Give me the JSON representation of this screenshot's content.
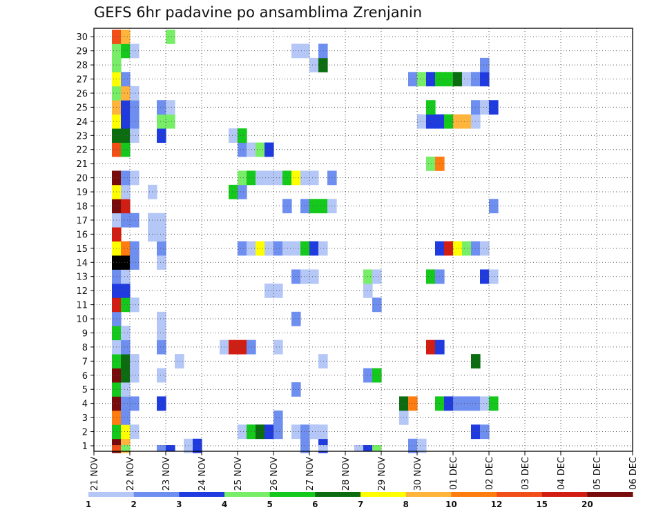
{
  "chart_data": {
    "type": "heatmap",
    "title": "GEFS 6hr padavine po ansamblima Zrenjanin",
    "xlabel": "",
    "ylabel": "",
    "x_tick_labels": [
      "21 NOV",
      "22 NOV",
      "23 NOV",
      "24 NOV",
      "25 NOV",
      "26 NOV",
      "27 NOV",
      "28 NOV",
      "29 NOV",
      "30 NOV",
      "01 DEC",
      "02 DEC",
      "03 DEC",
      "04 DEC",
      "05 DEC",
      "06 DEC"
    ],
    "y_tick_labels": [
      "1",
      "2",
      "3",
      "4",
      "5",
      "6",
      "7",
      "8",
      "9",
      "10",
      "11",
      "12",
      "13",
      "14",
      "15",
      "16",
      "17",
      "18",
      "19",
      "20",
      "21",
      "22",
      "23",
      "24",
      "25",
      "26",
      "27",
      "28",
      "29",
      "30"
    ],
    "ylim": [
      0,
      30
    ],
    "x_step_hours": 6,
    "grid": true,
    "colorbar": {
      "labels": [
        "1",
        "2",
        "3",
        "4",
        "5",
        "6",
        "7",
        "8",
        "10",
        "12",
        "15",
        "20"
      ],
      "colors": [
        "#b4c7f6",
        "#6e8ef0",
        "#1f3be0",
        "#78ed67",
        "#14c81c",
        "#0b6d10",
        "#ffff00",
        "#ffb43c",
        "#ff7d10",
        "#f24e18",
        "#d11d12",
        "#780b0b"
      ],
      "position": "bottom"
    },
    "rows": [
      [
        [
          2,
          1,
          12
        ],
        [
          3,
          1,
          8
        ],
        [
          10,
          1,
          1
        ],
        [
          11,
          1,
          3
        ],
        [
          23,
          1,
          2
        ],
        [
          25,
          1,
          3
        ],
        [
          35,
          1,
          2
        ],
        [
          36,
          1,
          1
        ]
      ],
      [
        [
          2,
          1,
          5
        ],
        [
          3,
          1,
          7
        ],
        [
          4,
          1,
          1
        ],
        [
          16,
          3,
          1
        ],
        [
          17,
          1,
          5
        ],
        [
          18,
          1,
          6
        ],
        [
          19,
          1,
          3
        ],
        [
          20,
          1,
          2
        ],
        [
          22,
          1,
          1
        ],
        [
          23,
          2,
          2
        ],
        [
          24,
          2,
          1
        ],
        [
          42,
          1,
          3
        ],
        [
          43,
          1,
          2
        ]
      ],
      [
        [
          2,
          1,
          9
        ],
        [
          3,
          1,
          2
        ],
        [
          20,
          1,
          2
        ],
        [
          34,
          1,
          1
        ]
      ],
      [
        [
          2,
          1,
          12
        ],
        [
          3,
          2,
          2
        ],
        [
          7,
          1,
          3
        ],
        [
          34,
          1,
          6
        ],
        [
          35,
          1,
          9
        ],
        [
          38,
          1,
          5
        ],
        [
          39,
          1,
          3
        ],
        [
          40,
          3,
          2
        ],
        [
          43,
          1,
          1
        ],
        [
          44,
          1,
          5
        ]
      ],
      [
        [
          2,
          2,
          5
        ],
        [
          3,
          1,
          1
        ],
        [
          22,
          1,
          2
        ]
      ],
      [
        [
          2,
          1,
          12
        ],
        [
          3,
          1,
          6
        ],
        [
          4,
          1,
          1
        ],
        [
          7,
          1,
          1
        ],
        [
          30,
          1,
          2
        ],
        [
          31,
          1,
          5
        ]
      ],
      [
        [
          2,
          1,
          5
        ],
        [
          3,
          1,
          6
        ],
        [
          4,
          1,
          1
        ],
        [
          9,
          1,
          1
        ],
        [
          25,
          1,
          1
        ],
        [
          42,
          1,
          6
        ]
      ],
      [
        [
          2,
          1,
          1
        ],
        [
          3,
          1,
          2
        ],
        [
          7,
          1,
          2
        ],
        [
          14,
          1,
          1
        ],
        [
          15,
          2,
          11
        ],
        [
          17,
          1,
          2
        ],
        [
          20,
          1,
          1
        ],
        [
          37,
          1,
          11
        ],
        [
          38,
          1,
          3
        ]
      ],
      [
        [
          2,
          1,
          5
        ],
        [
          3,
          1,
          1
        ],
        [
          7,
          1,
          1
        ]
      ],
      [
        [
          2,
          1,
          2
        ],
        [
          7,
          1,
          1
        ],
        [
          22,
          1,
          2
        ]
      ],
      [
        [
          2,
          1,
          11
        ],
        [
          3,
          1,
          5
        ],
        [
          4,
          1,
          1
        ],
        [
          4,
          1,
          1
        ],
        [
          31,
          1,
          2
        ]
      ],
      [
        [
          2,
          2,
          3
        ],
        [
          19,
          2,
          1
        ],
        [
          30,
          1,
          1
        ]
      ],
      [
        [
          2,
          1,
          2
        ],
        [
          3,
          1,
          1
        ],
        [
          22,
          1,
          2
        ],
        [
          23,
          1,
          1
        ],
        [
          23,
          2,
          1
        ],
        [
          30,
          1,
          4
        ],
        [
          31,
          1,
          1
        ],
        [
          37,
          1,
          5
        ],
        [
          38,
          1,
          2
        ],
        [
          43,
          1,
          3
        ],
        [
          44,
          1,
          1
        ]
      ],
      [
        [
          2,
          2,
          13
        ],
        [
          4,
          1,
          2
        ],
        [
          7,
          1,
          1
        ]
      ],
      [
        [
          2,
          1,
          7
        ],
        [
          3,
          1,
          9
        ],
        [
          4,
          1,
          2
        ],
        [
          7,
          1,
          2
        ],
        [
          16,
          1,
          2
        ],
        [
          17,
          1,
          1
        ],
        [
          18,
          1,
          7
        ],
        [
          19,
          1,
          1
        ],
        [
          20,
          1,
          2
        ],
        [
          21,
          2,
          1
        ],
        [
          23,
          1,
          5
        ],
        [
          24,
          1,
          3
        ],
        [
          25,
          1,
          1
        ],
        [
          38,
          1,
          3
        ],
        [
          39,
          1,
          11
        ],
        [
          40,
          1,
          7
        ],
        [
          41,
          1,
          4
        ],
        [
          42,
          1,
          2
        ],
        [
          43,
          1,
          1
        ]
      ],
      [
        [
          2,
          1,
          11
        ],
        [
          6,
          2,
          1
        ]
      ],
      [
        [
          2,
          1,
          1
        ],
        [
          3,
          2,
          2
        ],
        [
          6,
          2,
          1
        ]
      ],
      [
        [
          2,
          1,
          12
        ],
        [
          3,
          1,
          11
        ],
        [
          21,
          1,
          2
        ],
        [
          23,
          1,
          2
        ],
        [
          24,
          2,
          5
        ],
        [
          26,
          1,
          1
        ],
        [
          44,
          1,
          2
        ]
      ],
      [
        [
          2,
          1,
          7
        ],
        [
          3,
          1,
          1
        ],
        [
          6,
          1,
          1
        ],
        [
          15,
          1,
          5
        ],
        [
          16,
          1,
          2
        ]
      ],
      [
        [
          2,
          1,
          12
        ],
        [
          3,
          1,
          2
        ],
        [
          4,
          1,
          1
        ],
        [
          16,
          1,
          4
        ],
        [
          17,
          1,
          5
        ],
        [
          18,
          1,
          1
        ],
        [
          19,
          2,
          1
        ],
        [
          21,
          1,
          5
        ],
        [
          22,
          1,
          7
        ],
        [
          23,
          2,
          1
        ],
        [
          26,
          1,
          2
        ]
      ],
      [
        [
          37,
          1,
          4
        ],
        [
          38,
          1,
          9
        ]
      ],
      [
        [
          2,
          1,
          10
        ],
        [
          3,
          1,
          5
        ],
        [
          16,
          1,
          2
        ],
        [
          17,
          1,
          1
        ],
        [
          18,
          1,
          4
        ],
        [
          19,
          1,
          3
        ]
      ],
      [
        [
          2,
          2,
          6
        ],
        [
          4,
          1,
          1
        ],
        [
          7,
          1,
          3
        ],
        [
          15,
          1,
          1
        ],
        [
          16,
          1,
          5
        ]
      ],
      [
        [
          2,
          1,
          7
        ],
        [
          3,
          1,
          3
        ],
        [
          4,
          1,
          2
        ],
        [
          7,
          2,
          4
        ],
        [
          36,
          1,
          1
        ],
        [
          37,
          2,
          3
        ],
        [
          39,
          1,
          5
        ],
        [
          40,
          2,
          8
        ],
        [
          42,
          1,
          1
        ]
      ],
      [
        [
          2,
          1,
          8
        ],
        [
          3,
          1,
          3
        ],
        [
          4,
          1,
          2
        ],
        [
          7,
          1,
          2
        ],
        [
          8,
          1,
          1
        ],
        [
          37,
          1,
          5
        ],
        [
          42,
          1,
          2
        ],
        [
          43,
          1,
          1
        ],
        [
          44,
          1,
          3
        ]
      ],
      [
        [
          2,
          1,
          4
        ],
        [
          3,
          1,
          8
        ],
        [
          4,
          1,
          1
        ]
      ],
      [
        [
          2,
          1,
          7
        ],
        [
          3,
          1,
          2
        ],
        [
          35,
          1,
          2
        ],
        [
          36,
          1,
          4
        ],
        [
          37,
          1,
          3
        ],
        [
          38,
          2,
          5
        ],
        [
          40,
          1,
          6
        ],
        [
          41,
          1,
          1
        ],
        [
          42,
          1,
          2
        ],
        [
          43,
          1,
          3
        ]
      ],
      [
        [
          2,
          1,
          4
        ],
        [
          24,
          1,
          1
        ],
        [
          25,
          1,
          6
        ],
        [
          43,
          1,
          2
        ]
      ],
      [
        [
          2,
          1,
          4
        ],
        [
          3,
          1,
          5
        ],
        [
          4,
          1,
          1
        ],
        [
          22,
          2,
          1
        ],
        [
          25,
          1,
          2
        ]
      ],
      [
        [
          2,
          1,
          10
        ],
        [
          3,
          1,
          8
        ],
        [
          8,
          1,
          4
        ]
      ]
    ],
    "bottom_row": [
      [
        2,
        1,
        10
      ],
      [
        3,
        1,
        4
      ],
      [
        7,
        1,
        2
      ],
      [
        8,
        1,
        3
      ],
      [
        25,
        1,
        1
      ],
      [
        29,
        1,
        1
      ],
      [
        30,
        1,
        3
      ],
      [
        31,
        1,
        4
      ]
    ]
  }
}
